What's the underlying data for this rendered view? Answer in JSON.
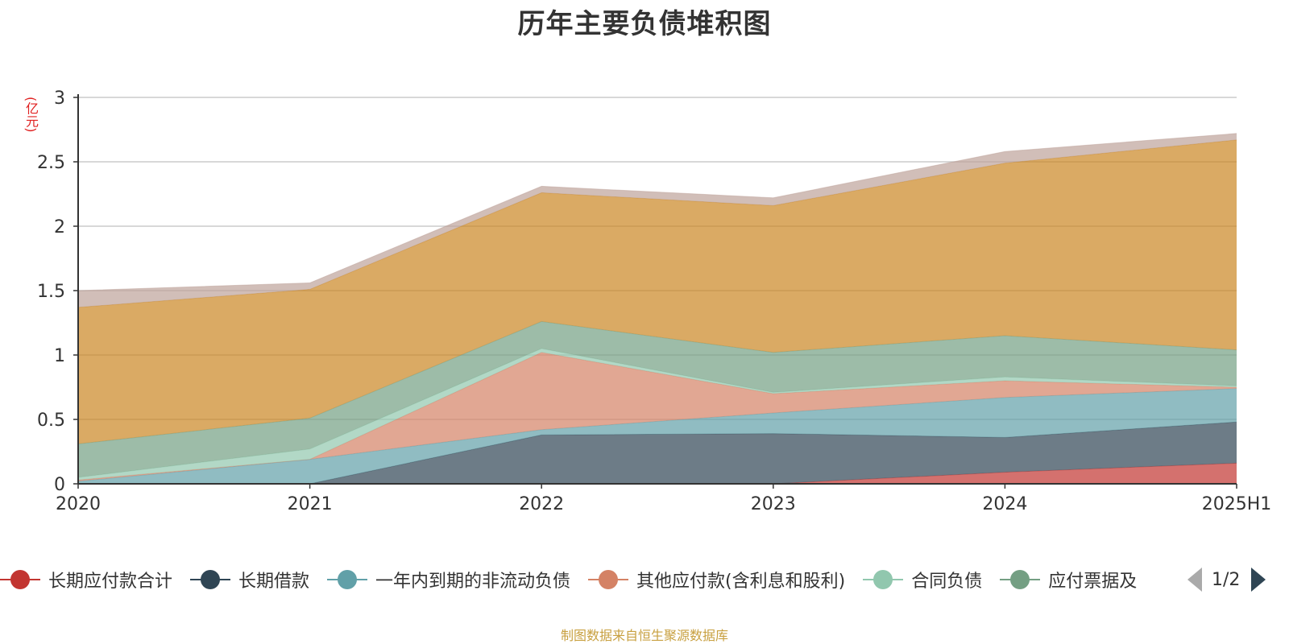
{
  "title": "历年主要负债堆积图",
  "unit_label": "(亿元)",
  "source": "制图数据来自恒生聚源数据库",
  "legend_pager": "1/2",
  "chart_data": {
    "type": "area",
    "stacked": true,
    "title": "历年主要负债堆积图",
    "ylabel": "(亿元)",
    "ylim": [
      0,
      3
    ],
    "yticks": [
      "0",
      "0.5",
      "1",
      "1.5",
      "2",
      "2.5",
      "3"
    ],
    "categories": [
      "2020",
      "2021",
      "2022",
      "2023",
      "2024",
      "2025H1"
    ],
    "grid": true,
    "legend_position": "bottom",
    "series": [
      {
        "name": "长期应付款合计",
        "color": "#c23531",
        "values": [
          0,
          0,
          0,
          0,
          0.09,
          0.16
        ]
      },
      {
        "name": "长期借款",
        "color": "#2f4554",
        "values": [
          0,
          0,
          0.38,
          0.39,
          0.27,
          0.32
        ]
      },
      {
        "name": "一年内到期的非流动负债",
        "color": "#61a0a8",
        "values": [
          0.02,
          0.19,
          0.04,
          0.16,
          0.31,
          0.26
        ]
      },
      {
        "name": "其他应付款(含利息和股利)",
        "color": "#d48265",
        "values": [
          0.01,
          0,
          0.6,
          0.15,
          0.13,
          0.01
        ]
      },
      {
        "name": "合同负债",
        "color": "#91c7ae",
        "values": [
          0.02,
          0.08,
          0.03,
          0.01,
          0.03,
          0.01
        ]
      },
      {
        "name": "应付票据及应付账款",
        "color": "#749f83",
        "values": [
          0.26,
          0.24,
          0.21,
          0.31,
          0.32,
          0.28
        ]
      },
      {
        "name": "",
        "color": "#ca8622",
        "values": [
          1.06,
          1.0,
          1.0,
          1.14,
          1.34,
          1.63
        ]
      },
      {
        "name": "",
        "color": "#bda29a",
        "values": [
          0.13,
          0.05,
          0.05,
          0.06,
          0.09,
          0.05
        ]
      }
    ],
    "visible_legend_labels": [
      "长期应付款合计",
      "长期借款",
      "一年内到期的非流动负债",
      "其他应付款(含利息和股利)",
      "合同负债",
      "应付票据及"
    ]
  }
}
